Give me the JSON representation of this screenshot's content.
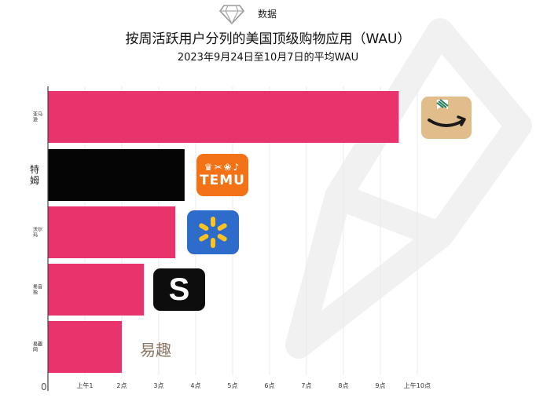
{
  "header": {
    "brand_text": "数据",
    "logo_icon": "diamond-logo-icon"
  },
  "chart_data": {
    "type": "bar",
    "orientation": "horizontal",
    "title": "按周活跃用户分列的美国顶级购物应用（WAU）",
    "subtitle": "2023年9月24日至10月7日的平均WAU",
    "categories": [
      "亚马逊",
      "特姆",
      "沃尔玛",
      "希音",
      "易趣"
    ],
    "category_display": [
      "亚马\n逊",
      "特\n姆",
      "沃尔\n玛",
      "希音\n独",
      "易趣\n网"
    ],
    "values": [
      9.5,
      3.7,
      3.45,
      2.6,
      2.0
    ],
    "colors": [
      "#e8336c",
      "#050505",
      "#e8336c",
      "#e8336c",
      "#e8336c"
    ],
    "x_origin_label": "0",
    "x_tick_labels": [
      "上午1",
      "2点",
      "3点",
      "4点",
      "5点",
      "6点",
      "7点",
      "8点",
      "9点",
      "上午10点"
    ],
    "x_tick_values": [
      1,
      2,
      3,
      4,
      5,
      6,
      7,
      8,
      9,
      10
    ],
    "xlim": [
      0,
      10.3
    ],
    "grid": true
  },
  "logos": {
    "amazon_icon": "amazon-app-icon",
    "temu_icon_glyphs": "♛✂❀♪",
    "temu_text": "TEMU",
    "walmart_icon": "walmart-spark-icon",
    "shein_text": "S",
    "ebay_text": "易趣"
  },
  "colors": {
    "accent": "#e8336c",
    "highlight": "#050505"
  }
}
